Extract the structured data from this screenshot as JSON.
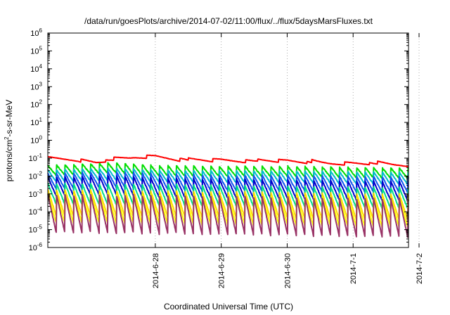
{
  "chart_data": {
    "type": "line",
    "title": "/data/run/goesPlots/archive/2014-07-02/11:00/flux/../flux/5daysMarsFluxes.txt",
    "xlabel": "Coordinated Universal Time (UTC)",
    "ylabel_parts": [
      "protons/cm",
      "2",
      "-s-sr-MeV"
    ],
    "y_scale": "log",
    "ylim": [
      1e-06,
      1000000.0
    ],
    "xlim": [
      -1.63,
      3.84
    ],
    "y_ticks": [
      {
        "value": 1e-06,
        "base": "10",
        "exp": "-6"
      },
      {
        "value": 1e-05,
        "base": "10",
        "exp": "-5"
      },
      {
        "value": 0.0001,
        "base": "10",
        "exp": "-4"
      },
      {
        "value": 0.001,
        "base": "10",
        "exp": "-3"
      },
      {
        "value": 0.01,
        "base": "10",
        "exp": "-2"
      },
      {
        "value": 0.1,
        "base": "10",
        "exp": "-1"
      },
      {
        "value": 1,
        "base": "10",
        "exp": "0"
      },
      {
        "value": 10,
        "base": "10",
        "exp": "1"
      },
      {
        "value": 100,
        "base": "10",
        "exp": "2"
      },
      {
        "value": 1000,
        "base": "10",
        "exp": "3"
      },
      {
        "value": 10000,
        "base": "10",
        "exp": "4"
      },
      {
        "value": 100000,
        "base": "10",
        "exp": "5"
      },
      {
        "value": 1000000,
        "base": "10",
        "exp": "6"
      }
    ],
    "x_ticks": [
      {
        "value": 0,
        "label": "2014-6-28"
      },
      {
        "value": 1,
        "label": "2014-6-29"
      },
      {
        "value": 2,
        "label": "2014-6-30"
      },
      {
        "value": 3,
        "label": "2014-7-1"
      },
      {
        "value": 4,
        "label": "2014-7-2"
      }
    ],
    "grid": true,
    "series": [
      {
        "color": "#ff0000",
        "cycle_days": 0.5,
        "base_log": [
          [
            -1.63,
            -1.0
          ],
          [
            -1.2,
            -1.1
          ],
          [
            -0.9,
            -1.25
          ],
          [
            -0.6,
            -1.1
          ],
          [
            -0.3,
            -0.95
          ],
          [
            0.0,
            -0.9
          ],
          [
            0.5,
            -1.15
          ],
          [
            1.0,
            -1.1
          ],
          [
            1.5,
            -1.2
          ],
          [
            2.0,
            -1.15
          ],
          [
            2.5,
            -1.3
          ],
          [
            3.0,
            -1.3
          ],
          [
            3.5,
            -1.35
          ],
          [
            3.84,
            -1.4
          ]
        ],
        "amp": 0.25,
        "noise": 0.05
      },
      {
        "color": "#00dd00",
        "cycle_days": 0.13,
        "base_log": [
          [
            -1.63,
            -1.7
          ],
          [
            -0.6,
            -1.55
          ],
          [
            0.0,
            -1.7
          ],
          [
            1.0,
            -1.75
          ],
          [
            2.0,
            -1.75
          ],
          [
            3.0,
            -1.8
          ],
          [
            3.84,
            -1.85
          ]
        ],
        "amp": 0.3,
        "noise": 0.05
      },
      {
        "color": "#00bbcc",
        "cycle_days": 0.13,
        "base_log": [
          [
            -1.63,
            -2.0
          ],
          [
            -0.6,
            -1.9
          ],
          [
            0.0,
            -2.0
          ],
          [
            1.0,
            -2.05
          ],
          [
            2.0,
            -2.05
          ],
          [
            3.0,
            -2.1
          ],
          [
            3.84,
            -2.15
          ]
        ],
        "amp": 0.35,
        "noise": 0.05
      },
      {
        "color": "#1155ee",
        "cycle_days": 0.13,
        "base_log": [
          [
            -1.63,
            -2.3
          ],
          [
            -0.6,
            -2.2
          ],
          [
            0.0,
            -2.3
          ],
          [
            1.0,
            -2.4
          ],
          [
            2.0,
            -2.4
          ],
          [
            3.0,
            -2.45
          ],
          [
            3.84,
            -2.5
          ]
        ],
        "amp": 0.45,
        "noise": 0.05
      },
      {
        "color": "#0000cc",
        "cycle_days": 0.13,
        "base_log": [
          [
            -1.63,
            -2.6
          ],
          [
            -0.6,
            -2.5
          ],
          [
            0.0,
            -2.65
          ],
          [
            1.0,
            -2.7
          ],
          [
            2.0,
            -2.75
          ],
          [
            3.0,
            -2.8
          ],
          [
            3.84,
            -2.85
          ]
        ],
        "amp": 0.55,
        "noise": 0.05
      },
      {
        "color": "#00dd88",
        "cycle_days": 0.13,
        "base_log": [
          [
            -1.63,
            -3.0
          ],
          [
            0.0,
            -3.05
          ],
          [
            1.0,
            -3.1
          ],
          [
            2.0,
            -3.15
          ],
          [
            3.0,
            -3.2
          ],
          [
            3.84,
            -3.25
          ]
        ],
        "amp": 0.6,
        "noise": 0.05
      },
      {
        "color": "#ffdd00",
        "cycle_days": 0.13,
        "base_log": [
          [
            -1.63,
            -3.5
          ],
          [
            0.0,
            -3.55
          ],
          [
            1.0,
            -3.6
          ],
          [
            2.0,
            -3.65
          ],
          [
            3.0,
            -3.7
          ],
          [
            3.84,
            -3.75
          ]
        ],
        "amp": 0.75,
        "noise": 0.05
      },
      {
        "color": "#ffff00",
        "cycle_days": 0.13,
        "base_log": [
          [
            -1.63,
            -3.8
          ],
          [
            0.0,
            -3.85
          ],
          [
            1.0,
            -3.9
          ],
          [
            2.0,
            -3.95
          ],
          [
            3.0,
            -4.0
          ],
          [
            3.84,
            -4.05
          ]
        ],
        "amp": 0.85,
        "noise": 0.05
      },
      {
        "color": "#993366",
        "cycle_days": 0.13,
        "base_log": [
          [
            -1.63,
            -4.1
          ],
          [
            0.0,
            -4.15
          ],
          [
            1.0,
            -4.2
          ],
          [
            2.0,
            -4.25
          ],
          [
            3.0,
            -4.3
          ],
          [
            3.84,
            -4.35
          ]
        ],
        "amp": 1.1,
        "noise": 0.05
      }
    ]
  }
}
